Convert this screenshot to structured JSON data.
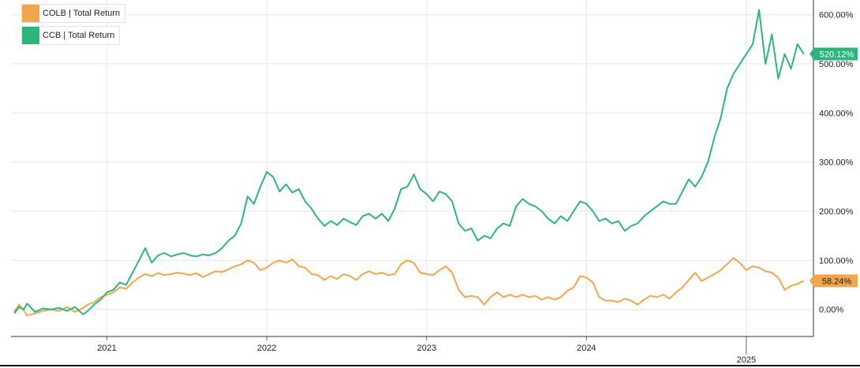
{
  "chart_data": {
    "type": "line",
    "title": "",
    "xlabel": "",
    "ylabel": "",
    "x_ticks": [
      "2021",
      "2022",
      "2023",
      "2024",
      "2025"
    ],
    "y_ticks": [
      "0.00%",
      "100.00%",
      "200.00%",
      "300.00%",
      "400.00%",
      "500.00%",
      "600.00%"
    ],
    "ylim": [
      -55,
      630
    ],
    "xlim": [
      2020.4,
      2025.42
    ],
    "grid": true,
    "legend_position": "top-left",
    "series": [
      {
        "name": "COLB | Total Return",
        "color": "#f2a54a",
        "last_label": "58.24%",
        "points": [
          [
            2020.42,
            -5
          ],
          [
            2020.45,
            10
          ],
          [
            2020.48,
            -2
          ],
          [
            2020.5,
            -12
          ],
          [
            2020.55,
            -8
          ],
          [
            2020.6,
            -3
          ],
          [
            2020.65,
            0
          ],
          [
            2020.7,
            -3
          ],
          [
            2020.75,
            5
          ],
          [
            2020.8,
            -5
          ],
          [
            2020.85,
            3
          ],
          [
            2020.88,
            10
          ],
          [
            2020.92,
            15
          ],
          [
            2020.96,
            25
          ],
          [
            2021.0,
            30
          ],
          [
            2021.04,
            35
          ],
          [
            2021.08,
            45
          ],
          [
            2021.12,
            42
          ],
          [
            2021.16,
            55
          ],
          [
            2021.2,
            65
          ],
          [
            2021.24,
            72
          ],
          [
            2021.28,
            68
          ],
          [
            2021.32,
            74
          ],
          [
            2021.36,
            70
          ],
          [
            2021.4,
            72
          ],
          [
            2021.44,
            75
          ],
          [
            2021.48,
            73
          ],
          [
            2021.52,
            70
          ],
          [
            2021.56,
            74
          ],
          [
            2021.6,
            66
          ],
          [
            2021.64,
            72
          ],
          [
            2021.68,
            78
          ],
          [
            2021.72,
            76
          ],
          [
            2021.76,
            82
          ],
          [
            2021.8,
            88
          ],
          [
            2021.84,
            92
          ],
          [
            2021.88,
            100
          ],
          [
            2021.92,
            95
          ],
          [
            2021.96,
            80
          ],
          [
            2022.0,
            85
          ],
          [
            2022.04,
            95
          ],
          [
            2022.08,
            100
          ],
          [
            2022.12,
            95
          ],
          [
            2022.16,
            102
          ],
          [
            2022.2,
            88
          ],
          [
            2022.24,
            85
          ],
          [
            2022.28,
            72
          ],
          [
            2022.32,
            70
          ],
          [
            2022.36,
            60
          ],
          [
            2022.4,
            68
          ],
          [
            2022.44,
            62
          ],
          [
            2022.48,
            72
          ],
          [
            2022.52,
            68
          ],
          [
            2022.56,
            60
          ],
          [
            2022.6,
            72
          ],
          [
            2022.64,
            78
          ],
          [
            2022.68,
            72
          ],
          [
            2022.72,
            75
          ],
          [
            2022.76,
            70
          ],
          [
            2022.8,
            72
          ],
          [
            2022.84,
            92
          ],
          [
            2022.88,
            100
          ],
          [
            2022.92,
            95
          ],
          [
            2022.96,
            75
          ],
          [
            2023.0,
            72
          ],
          [
            2023.04,
            70
          ],
          [
            2023.08,
            80
          ],
          [
            2023.12,
            88
          ],
          [
            2023.16,
            75
          ],
          [
            2023.2,
            40
          ],
          [
            2023.24,
            25
          ],
          [
            2023.28,
            28
          ],
          [
            2023.32,
            25
          ],
          [
            2023.36,
            10
          ],
          [
            2023.4,
            25
          ],
          [
            2023.44,
            35
          ],
          [
            2023.48,
            25
          ],
          [
            2023.52,
            30
          ],
          [
            2023.56,
            25
          ],
          [
            2023.6,
            30
          ],
          [
            2023.64,
            25
          ],
          [
            2023.68,
            28
          ],
          [
            2023.72,
            20
          ],
          [
            2023.76,
            25
          ],
          [
            2023.8,
            20
          ],
          [
            2023.84,
            25
          ],
          [
            2023.88,
            38
          ],
          [
            2023.92,
            45
          ],
          [
            2023.96,
            68
          ],
          [
            2024.0,
            65
          ],
          [
            2024.04,
            55
          ],
          [
            2024.08,
            25
          ],
          [
            2024.12,
            18
          ],
          [
            2024.16,
            18
          ],
          [
            2024.2,
            15
          ],
          [
            2024.24,
            22
          ],
          [
            2024.28,
            18
          ],
          [
            2024.32,
            10
          ],
          [
            2024.36,
            20
          ],
          [
            2024.4,
            28
          ],
          [
            2024.44,
            25
          ],
          [
            2024.48,
            30
          ],
          [
            2024.52,
            22
          ],
          [
            2024.56,
            35
          ],
          [
            2024.6,
            45
          ],
          [
            2024.64,
            60
          ],
          [
            2024.68,
            75
          ],
          [
            2024.72,
            58
          ],
          [
            2024.76,
            65
          ],
          [
            2024.8,
            72
          ],
          [
            2024.84,
            80
          ],
          [
            2024.88,
            92
          ],
          [
            2024.92,
            105
          ],
          [
            2024.96,
            95
          ],
          [
            2025.0,
            80
          ],
          [
            2025.04,
            88
          ],
          [
            2025.08,
            85
          ],
          [
            2025.12,
            78
          ],
          [
            2025.16,
            75
          ],
          [
            2025.2,
            65
          ],
          [
            2025.24,
            40
          ],
          [
            2025.28,
            48
          ],
          [
            2025.32,
            52
          ],
          [
            2025.36,
            58.24
          ]
        ]
      },
      {
        "name": "CCB | Total Return",
        "color": "#2db57d",
        "last_label": "520.12%",
        "points": [
          [
            2020.42,
            -8
          ],
          [
            2020.45,
            5
          ],
          [
            2020.48,
            0
          ],
          [
            2020.5,
            12
          ],
          [
            2020.55,
            -5
          ],
          [
            2020.6,
            2
          ],
          [
            2020.65,
            0
          ],
          [
            2020.7,
            3
          ],
          [
            2020.75,
            -3
          ],
          [
            2020.8,
            5
          ],
          [
            2020.85,
            -10
          ],
          [
            2020.88,
            -3
          ],
          [
            2020.92,
            10
          ],
          [
            2020.96,
            20
          ],
          [
            2021.0,
            35
          ],
          [
            2021.04,
            40
          ],
          [
            2021.08,
            55
          ],
          [
            2021.12,
            50
          ],
          [
            2021.16,
            75
          ],
          [
            2021.2,
            100
          ],
          [
            2021.24,
            125
          ],
          [
            2021.28,
            95
          ],
          [
            2021.32,
            110
          ],
          [
            2021.36,
            115
          ],
          [
            2021.4,
            108
          ],
          [
            2021.44,
            112
          ],
          [
            2021.48,
            115
          ],
          [
            2021.52,
            110
          ],
          [
            2021.56,
            108
          ],
          [
            2021.6,
            112
          ],
          [
            2021.64,
            110
          ],
          [
            2021.68,
            115
          ],
          [
            2021.72,
            125
          ],
          [
            2021.76,
            140
          ],
          [
            2021.8,
            150
          ],
          [
            2021.84,
            175
          ],
          [
            2021.88,
            230
          ],
          [
            2021.92,
            215
          ],
          [
            2021.96,
            250
          ],
          [
            2022.0,
            280
          ],
          [
            2022.04,
            270
          ],
          [
            2022.08,
            240
          ],
          [
            2022.12,
            255
          ],
          [
            2022.16,
            238
          ],
          [
            2022.2,
            245
          ],
          [
            2022.24,
            220
          ],
          [
            2022.28,
            205
          ],
          [
            2022.32,
            185
          ],
          [
            2022.36,
            170
          ],
          [
            2022.4,
            180
          ],
          [
            2022.44,
            172
          ],
          [
            2022.48,
            185
          ],
          [
            2022.52,
            178
          ],
          [
            2022.56,
            172
          ],
          [
            2022.6,
            190
          ],
          [
            2022.64,
            195
          ],
          [
            2022.68,
            185
          ],
          [
            2022.72,
            195
          ],
          [
            2022.76,
            180
          ],
          [
            2022.8,
            205
          ],
          [
            2022.84,
            245
          ],
          [
            2022.88,
            250
          ],
          [
            2022.92,
            275
          ],
          [
            2022.96,
            245
          ],
          [
            2023.0,
            235
          ],
          [
            2023.04,
            220
          ],
          [
            2023.08,
            240
          ],
          [
            2023.12,
            235
          ],
          [
            2023.16,
            220
          ],
          [
            2023.2,
            175
          ],
          [
            2023.24,
            160
          ],
          [
            2023.28,
            165
          ],
          [
            2023.32,
            140
          ],
          [
            2023.36,
            150
          ],
          [
            2023.4,
            145
          ],
          [
            2023.44,
            165
          ],
          [
            2023.48,
            175
          ],
          [
            2023.52,
            170
          ],
          [
            2023.56,
            210
          ],
          [
            2023.6,
            225
          ],
          [
            2023.64,
            215
          ],
          [
            2023.68,
            210
          ],
          [
            2023.72,
            200
          ],
          [
            2023.76,
            185
          ],
          [
            2023.8,
            175
          ],
          [
            2023.84,
            190
          ],
          [
            2023.88,
            180
          ],
          [
            2023.92,
            200
          ],
          [
            2023.96,
            220
          ],
          [
            2024.0,
            215
          ],
          [
            2024.04,
            200
          ],
          [
            2024.08,
            180
          ],
          [
            2024.12,
            185
          ],
          [
            2024.16,
            175
          ],
          [
            2024.2,
            180
          ],
          [
            2024.24,
            160
          ],
          [
            2024.28,
            170
          ],
          [
            2024.32,
            175
          ],
          [
            2024.36,
            190
          ],
          [
            2024.4,
            200
          ],
          [
            2024.44,
            210
          ],
          [
            2024.48,
            220
          ],
          [
            2024.52,
            215
          ],
          [
            2024.56,
            215
          ],
          [
            2024.6,
            240
          ],
          [
            2024.64,
            265
          ],
          [
            2024.68,
            250
          ],
          [
            2024.72,
            270
          ],
          [
            2024.76,
            300
          ],
          [
            2024.8,
            350
          ],
          [
            2024.84,
            390
          ],
          [
            2024.88,
            450
          ],
          [
            2024.92,
            480
          ],
          [
            2024.96,
            500
          ],
          [
            2025.0,
            520
          ],
          [
            2025.04,
            540
          ],
          [
            2025.08,
            610
          ],
          [
            2025.12,
            500
          ],
          [
            2025.16,
            560
          ],
          [
            2025.2,
            470
          ],
          [
            2025.24,
            520
          ],
          [
            2025.28,
            490
          ],
          [
            2025.32,
            540
          ],
          [
            2025.36,
            520.12
          ]
        ]
      }
    ]
  }
}
